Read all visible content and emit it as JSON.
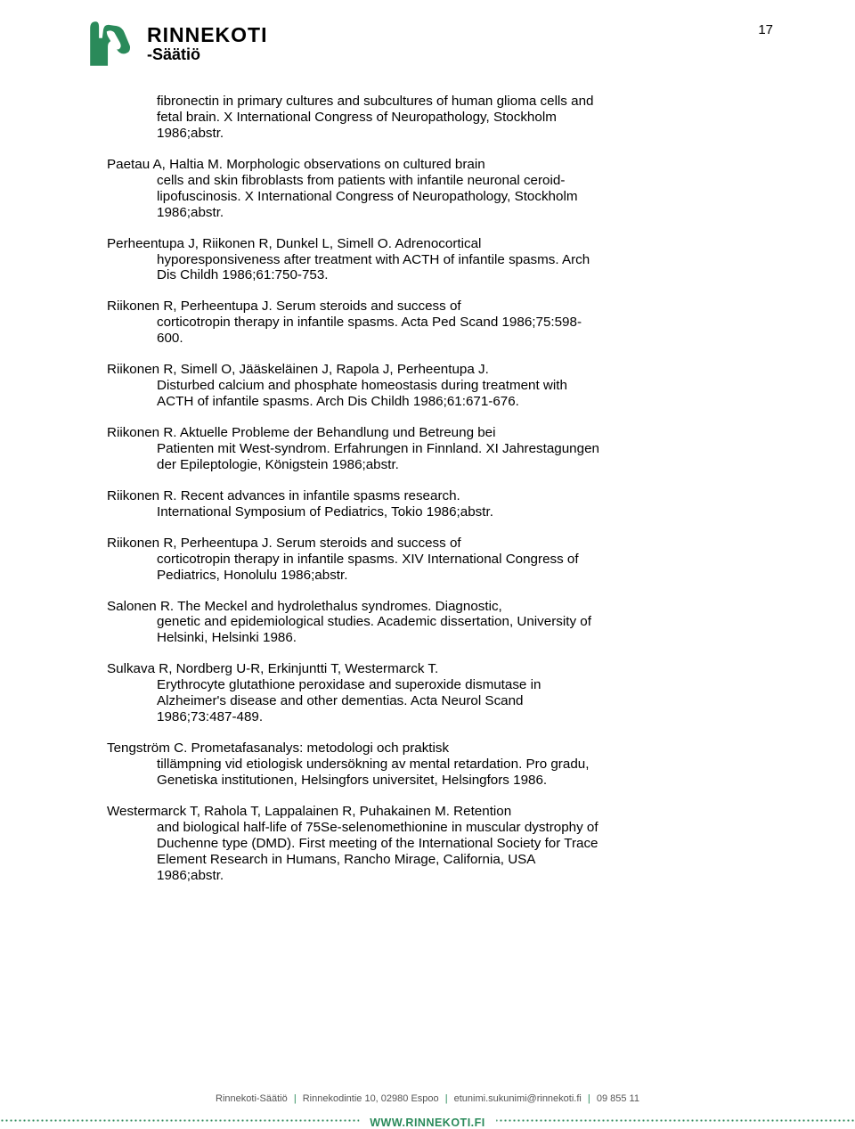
{
  "page_number": "17",
  "brand": {
    "name": "RINNEKOTI",
    "subname": "-Säätiö",
    "logo_color": "#2a8a5a"
  },
  "references": [
    {
      "lines": [
        "fibronectin in primary cultures and subcultures of human glioma cells and",
        "fetal brain. X International Congress of Neuropathology, Stockholm",
        "1986;abstr."
      ],
      "all_indented": true
    },
    {
      "lines": [
        "Paetau A, Haltia M.",
        "Morphologic observations on cultured brain",
        "cells and skin fibroblasts from patients with infantile neuronal ceroid-",
        "lipofuscinosis. X International Congress of Neuropathology, Stockholm",
        "1986;abstr."
      ],
      "merge_first": true
    },
    {
      "lines": [
        "Perheentupa J, Riikonen R, Dunkel L, Simell O. Adrenocortical",
        "hyporesponsiveness after treatment with ACTH of infantile spasms. Arch",
        "Dis Childh 1986;61:750-753."
      ]
    },
    {
      "lines": [
        "Riikonen R, Perheentupa J. Serum steroids and success of",
        "corticotropin therapy in infantile spasms. Acta Ped Scand 1986;75:598-",
        "600."
      ]
    },
    {
      "lines": [
        "Riikonen R, Simell O, Jääskeläinen J, Rapola J, Perheentupa J.",
        "Disturbed calcium and phosphate homeostasis during treatment with",
        "ACTH of infantile spasms. Arch Dis  Childh 1986;61:671-676."
      ]
    },
    {
      "lines": [
        "Riikonen R. Aktuelle Probleme der Behandlung und Betreung bei",
        "Patienten mit West-syndrom. Erfahrungen in Finnland. XI Jahrestagungen",
        "der Epileptologie, Königstein 1986;abstr."
      ]
    },
    {
      "lines": [
        "Riikonen R. Recent advances in infantile spasms research.",
        "International Symposium of Pediatrics, Tokio 1986;abstr."
      ]
    },
    {
      "lines": [
        "Riikonen R, Perheentupa J. Serum steroids and success of",
        "corticotropin therapy in infantile spasms. XIV International Congress of",
        "Pediatrics, Honolulu 1986;abstr."
      ]
    },
    {
      "lines": [
        "Salonen R. The Meckel and hydrolethalus syndromes. Diagnostic,",
        "genetic and epidemiological studies. Academic dissertation, University of",
        "Helsinki, Helsinki 1986."
      ]
    },
    {
      "lines": [
        "Sulkava R, Nordberg U-R, Erkinjuntti T, Westermarck T.",
        "Erythrocyte glutathione peroxidase and superoxide dismutase in",
        "Alzheimer's disease and other dementias. Acta Neurol Scand",
        "1986;73:487-489."
      ]
    },
    {
      "lines": [
        "Tengström C. Prometafasanalys: metodologi och praktisk",
        "tillämpning vid etiologisk undersökning av mental retardation. Pro gradu,",
        "Genetiska institutionen, Helsingfors universitet, Helsingfors 1986."
      ]
    },
    {
      "lines": [
        "Westermarck T, Rahola T, Lappalainen R, Puhakainen M. Retention",
        "and biological half-life of 75Se-selenomethionine in muscular dystrophy of",
        "Duchenne type (DMD). First meeting of the International Society for Trace",
        "Element Research in Humans, Rancho Mirage, California, USA",
        "1986;abstr."
      ]
    }
  ],
  "footer": {
    "org": "Rinnekoti-Säätiö",
    "address": "Rinnekodintie 10, 02980 Espoo",
    "email": "etunimi.sukunimi@rinnekoti.fi",
    "phone": "09 855 11",
    "site": "WWW.RINNEKOTI.FI"
  }
}
